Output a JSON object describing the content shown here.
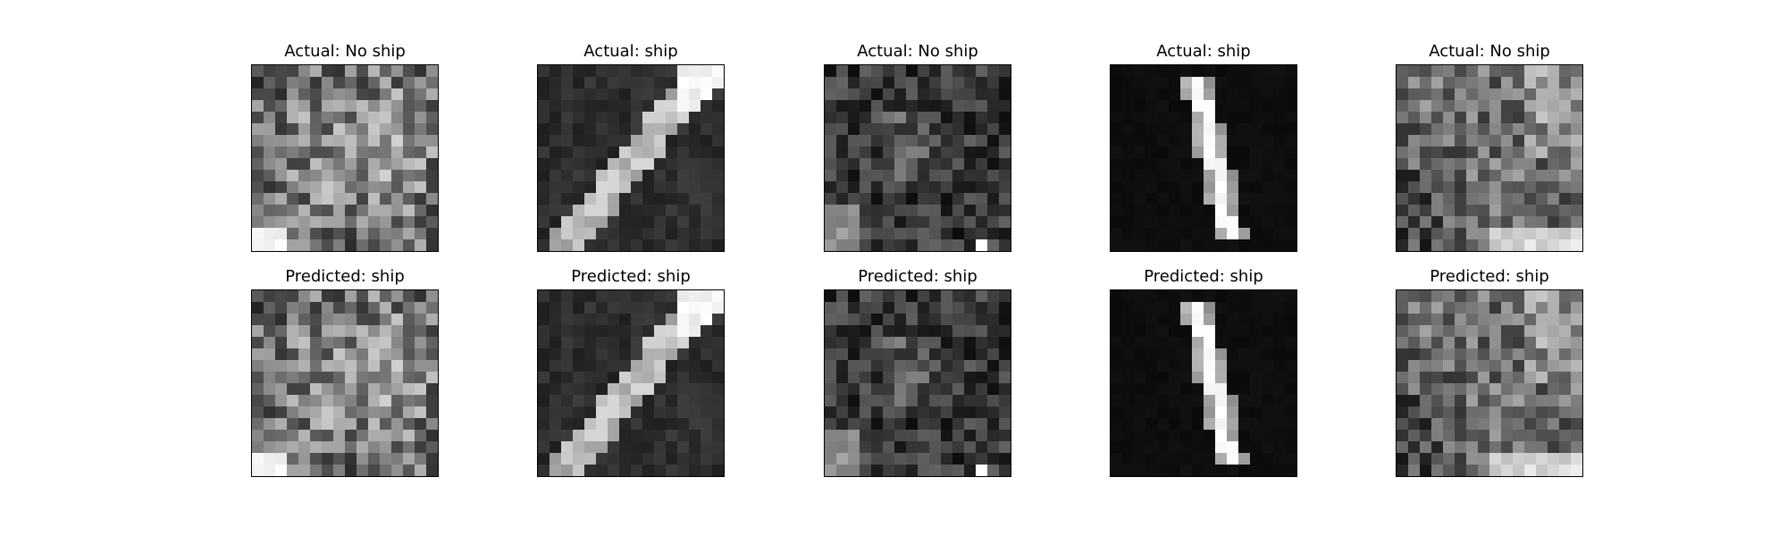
{
  "figure": {
    "background": "#ffffff",
    "grid_size": 16,
    "panels": [
      {
        "row": 0,
        "col": 0,
        "title": "Actual: No ship",
        "image_kind": "noise-bright",
        "seed": 11
      },
      {
        "row": 0,
        "col": 1,
        "title": "Actual: ship",
        "image_kind": "ship-diagonal",
        "seed": 23
      },
      {
        "row": 0,
        "col": 2,
        "title": "Actual: No ship",
        "image_kind": "noise-dark",
        "seed": 37
      },
      {
        "row": 0,
        "col": 3,
        "title": "Actual: ship",
        "image_kind": "ship-vertical",
        "seed": 41
      },
      {
        "row": 0,
        "col": 4,
        "title": "Actual: No ship",
        "image_kind": "noise-mid",
        "seed": 53
      },
      {
        "row": 1,
        "col": 0,
        "title": "Predicted: ship",
        "image_kind": "noise-bright",
        "seed": 11
      },
      {
        "row": 1,
        "col": 1,
        "title": "Predicted: ship",
        "image_kind": "ship-diagonal",
        "seed": 23
      },
      {
        "row": 1,
        "col": 2,
        "title": "Predicted: ship",
        "image_kind": "noise-dark",
        "seed": 37
      },
      {
        "row": 1,
        "col": 3,
        "title": "Predicted: ship",
        "image_kind": "ship-vertical",
        "seed": 41
      },
      {
        "row": 1,
        "col": 4,
        "title": "Predicted: ship",
        "image_kind": "noise-mid",
        "seed": 53
      }
    ]
  }
}
